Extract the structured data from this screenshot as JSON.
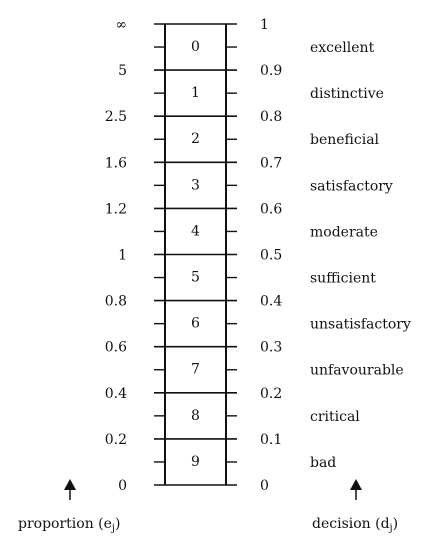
{
  "diagram": {
    "levels": [
      "0",
      "1",
      "2",
      "3",
      "4",
      "5",
      "6",
      "7",
      "8",
      "9"
    ],
    "proportion_ticks": [
      "∞",
      "5",
      "2.5",
      "1.6",
      "1.2",
      "1",
      "0.8",
      "0.6",
      "0.4",
      "0.2",
      "0"
    ],
    "decision_ticks": [
      "1",
      "0.9",
      "0.8",
      "0.7",
      "0.6",
      "0.5",
      "0.4",
      "0.3",
      "0.2",
      "0.1",
      "0"
    ],
    "categories": [
      "excellent",
      "distinctive",
      "beneficial",
      "satisfactory",
      "moderate",
      "sufficient",
      "unsatisfactory",
      "unfavourable",
      "critical",
      "bad"
    ],
    "left_axis_title": "proportion (e",
    "left_axis_sub": "j",
    "left_axis_close": ")",
    "right_axis_title": "decision (d",
    "right_axis_sub": "j",
    "right_axis_close": ")"
  }
}
